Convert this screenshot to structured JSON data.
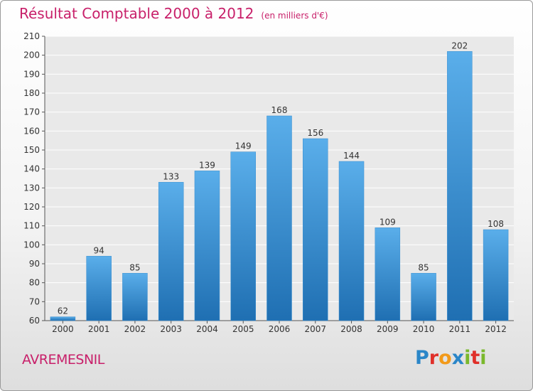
{
  "title": "Résultat Comptable 2000 à 2012",
  "subtitle": "(en milliers d'€)",
  "commune": "AVREMESNIL",
  "logo": {
    "letters": [
      "P",
      "r",
      "o",
      "x",
      "i",
      "t",
      "i"
    ],
    "colors": [
      "#2a86c8",
      "#e0302a",
      "#f29a1a",
      "#2a86c8",
      "#7ab82c",
      "#e0302a",
      "#7ab82c"
    ]
  },
  "colors": {
    "bar_light": "#5aaeea",
    "bar_dark": "#1f6fb2",
    "title": "#c8206a"
  },
  "chart_data": {
    "type": "bar",
    "categories": [
      "2000",
      "2001",
      "2002",
      "2003",
      "2004",
      "2005",
      "2006",
      "2007",
      "2008",
      "2009",
      "2010",
      "2011",
      "2012"
    ],
    "values": [
      62,
      94,
      85,
      133,
      139,
      149,
      168,
      156,
      144,
      109,
      85,
      202,
      108
    ],
    "ylim": [
      60,
      210
    ],
    "yticks": [
      60,
      70,
      80,
      90,
      100,
      110,
      120,
      130,
      140,
      150,
      160,
      170,
      180,
      190,
      200,
      210
    ],
    "grid": true
  }
}
